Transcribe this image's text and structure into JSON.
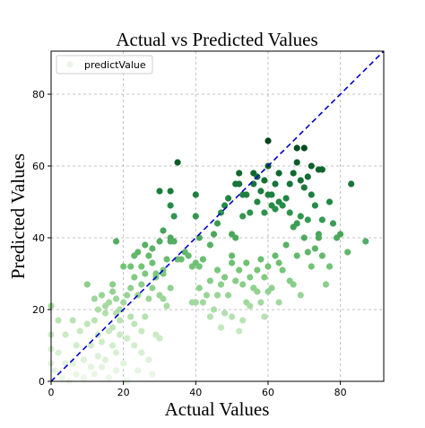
{
  "chart_data": {
    "type": "scatter",
    "title": "Actual vs Predicted Values",
    "xlabel": "Actual Values",
    "ylabel": "Predicted Values",
    "xlim": [
      0,
      92
    ],
    "ylim": [
      0,
      92
    ],
    "xticks": [
      0,
      20,
      40,
      60,
      80
    ],
    "yticks": [
      0,
      20,
      40,
      60,
      80
    ],
    "grid": true,
    "legend": {
      "position": "top-left",
      "entries": [
        "predictValue"
      ]
    },
    "colormap": "Greens (color by predicted value)",
    "reference_line": {
      "type": "y = x",
      "color": "#0000cc",
      "style": "dashed"
    },
    "series": [
      {
        "name": "predictValue",
        "points": [
          [
            0,
            21
          ],
          [
            0,
            13
          ],
          [
            0,
            9
          ],
          [
            0,
            5
          ],
          [
            1,
            3
          ],
          [
            2,
            8
          ],
          [
            2,
            17
          ],
          [
            3,
            1
          ],
          [
            4,
            5
          ],
          [
            4,
            13
          ],
          [
            5,
            0
          ],
          [
            6,
            17
          ],
          [
            6,
            5
          ],
          [
            7,
            10
          ],
          [
            7,
            2
          ],
          [
            8,
            14
          ],
          [
            9,
            6
          ],
          [
            9,
            1
          ],
          [
            10,
            16
          ],
          [
            11,
            10
          ],
          [
            11,
            4
          ],
          [
            12,
            2
          ],
          [
            12,
            17
          ],
          [
            13,
            13
          ],
          [
            13,
            7
          ],
          [
            14,
            11
          ],
          [
            14,
            4
          ],
          [
            15,
            19
          ],
          [
            15,
            6
          ],
          [
            16,
            1
          ],
          [
            16,
            14
          ],
          [
            17,
            10
          ],
          [
            17,
            15
          ],
          [
            18,
            19
          ],
          [
            18,
            3
          ],
          [
            18,
            8
          ],
          [
            19,
            17
          ],
          [
            19,
            13
          ],
          [
            20,
            5
          ],
          [
            21,
            0
          ],
          [
            21,
            12
          ],
          [
            22,
            18
          ],
          [
            23,
            10
          ],
          [
            23,
            16
          ],
          [
            24,
            3
          ],
          [
            25,
            8
          ],
          [
            25,
            14
          ],
          [
            26,
            18
          ],
          [
            27,
            6
          ],
          [
            28,
            2
          ],
          [
            29,
            13
          ],
          [
            30,
            12
          ],
          [
            12,
            23
          ],
          [
            13,
            20
          ],
          [
            14,
            24
          ],
          [
            15,
            21
          ],
          [
            16,
            22
          ],
          [
            17,
            25
          ],
          [
            18,
            23
          ],
          [
            19,
            20
          ],
          [
            20,
            22
          ],
          [
            17,
            27
          ],
          [
            10,
            27
          ],
          [
            21,
            24
          ],
          [
            22,
            26
          ],
          [
            23,
            29
          ],
          [
            24,
            24
          ],
          [
            25,
            27
          ],
          [
            26,
            30
          ],
          [
            27,
            23
          ],
          [
            28,
            26
          ],
          [
            29,
            29
          ],
          [
            30,
            24
          ],
          [
            31,
            23
          ],
          [
            31,
            31
          ],
          [
            32,
            21
          ],
          [
            33,
            26
          ],
          [
            22,
            32
          ],
          [
            20,
            32
          ],
          [
            23,
            35
          ],
          [
            24,
            36
          ],
          [
            25,
            32
          ],
          [
            26,
            38
          ],
          [
            27,
            35
          ],
          [
            28,
            37
          ],
          [
            28,
            33
          ],
          [
            29,
            30
          ],
          [
            30,
            39
          ],
          [
            31,
            30
          ],
          [
            32,
            34
          ],
          [
            33,
            40
          ],
          [
            33,
            39
          ],
          [
            34,
            39
          ],
          [
            35,
            34
          ],
          [
            36,
            34
          ],
          [
            37,
            36
          ],
          [
            38,
            35
          ],
          [
            39,
            32
          ],
          [
            40,
            33
          ],
          [
            41,
            32
          ],
          [
            42,
            34
          ],
          [
            43,
            24
          ],
          [
            44,
            28
          ],
          [
            45,
            20
          ],
          [
            46,
            24
          ],
          [
            47,
            27
          ],
          [
            48,
            29
          ],
          [
            49,
            24
          ],
          [
            50,
            33
          ],
          [
            50,
            35
          ],
          [
            51,
            28
          ],
          [
            52,
            31
          ],
          [
            53,
            27
          ],
          [
            54,
            33
          ],
          [
            55,
            29
          ],
          [
            56,
            26
          ],
          [
            57,
            31
          ],
          [
            58,
            34
          ],
          [
            59,
            29
          ],
          [
            60,
            32
          ],
          [
            46,
            31
          ],
          [
            42,
            22
          ],
          [
            39,
            22
          ],
          [
            40,
            22
          ],
          [
            41,
            26
          ],
          [
            44,
            18
          ],
          [
            47,
            15
          ],
          [
            48,
            19
          ],
          [
            50,
            18
          ],
          [
            52,
            14
          ],
          [
            53,
            17
          ],
          [
            54,
            22
          ],
          [
            55,
            21
          ],
          [
            56,
            26
          ],
          [
            57,
            25
          ],
          [
            58,
            22
          ],
          [
            59,
            18
          ],
          [
            60,
            25
          ],
          [
            61,
            26
          ],
          [
            62,
            35
          ],
          [
            63,
            22
          ],
          [
            63,
            33
          ],
          [
            64,
            31
          ],
          [
            65,
            38
          ],
          [
            66,
            28
          ],
          [
            67,
            27
          ],
          [
            68,
            35
          ],
          [
            69,
            24
          ],
          [
            70,
            40
          ],
          [
            71,
            36
          ],
          [
            72,
            32
          ],
          [
            73,
            37
          ],
          [
            74,
            40
          ],
          [
            75,
            35
          ],
          [
            76,
            27
          ],
          [
            77,
            32
          ],
          [
            79,
            40
          ],
          [
            80,
            41
          ],
          [
            82,
            36
          ],
          [
            87,
            39
          ],
          [
            18,
            39
          ],
          [
            30,
            53
          ],
          [
            31,
            42
          ],
          [
            33,
            49
          ],
          [
            33,
            53
          ],
          [
            34,
            46
          ],
          [
            40,
            46
          ],
          [
            40,
            52
          ],
          [
            41,
            40
          ],
          [
            44,
            38
          ],
          [
            45,
            41
          ],
          [
            46,
            44
          ],
          [
            47,
            47
          ],
          [
            48,
            49
          ],
          [
            49,
            51
          ],
          [
            50,
            41
          ],
          [
            51,
            40
          ],
          [
            51,
            55
          ],
          [
            52,
            58
          ],
          [
            53,
            46
          ],
          [
            54,
            52
          ],
          [
            55,
            47
          ],
          [
            56,
            55
          ],
          [
            57,
            50
          ],
          [
            58,
            53
          ],
          [
            59,
            47
          ],
          [
            60,
            52
          ],
          [
            60,
            60
          ],
          [
            61,
            52
          ],
          [
            62,
            48
          ],
          [
            62,
            55
          ],
          [
            63,
            50
          ],
          [
            64,
            49
          ],
          [
            65,
            51
          ],
          [
            66,
            47
          ],
          [
            67,
            43
          ],
          [
            68,
            44
          ],
          [
            69,
            46
          ],
          [
            70,
            54
          ],
          [
            71,
            45
          ],
          [
            72,
            52
          ],
          [
            73,
            49
          ],
          [
            74,
            41
          ],
          [
            75,
            45
          ],
          [
            77,
            50
          ],
          [
            78,
            44
          ],
          [
            35,
            61
          ],
          [
            52,
            55
          ],
          [
            56,
            58
          ],
          [
            57,
            57
          ],
          [
            59,
            56
          ],
          [
            60,
            67
          ],
          [
            61,
            49
          ],
          [
            63,
            58
          ],
          [
            66,
            55
          ],
          [
            67,
            58
          ],
          [
            68,
            61
          ],
          [
            69,
            56
          ],
          [
            70,
            65
          ],
          [
            71,
            57
          ],
          [
            72,
            60
          ],
          [
            74,
            59
          ],
          [
            75,
            59
          ],
          [
            83,
            55
          ],
          [
            68,
            65
          ],
          [
            53,
            52
          ]
        ]
      }
    ]
  }
}
